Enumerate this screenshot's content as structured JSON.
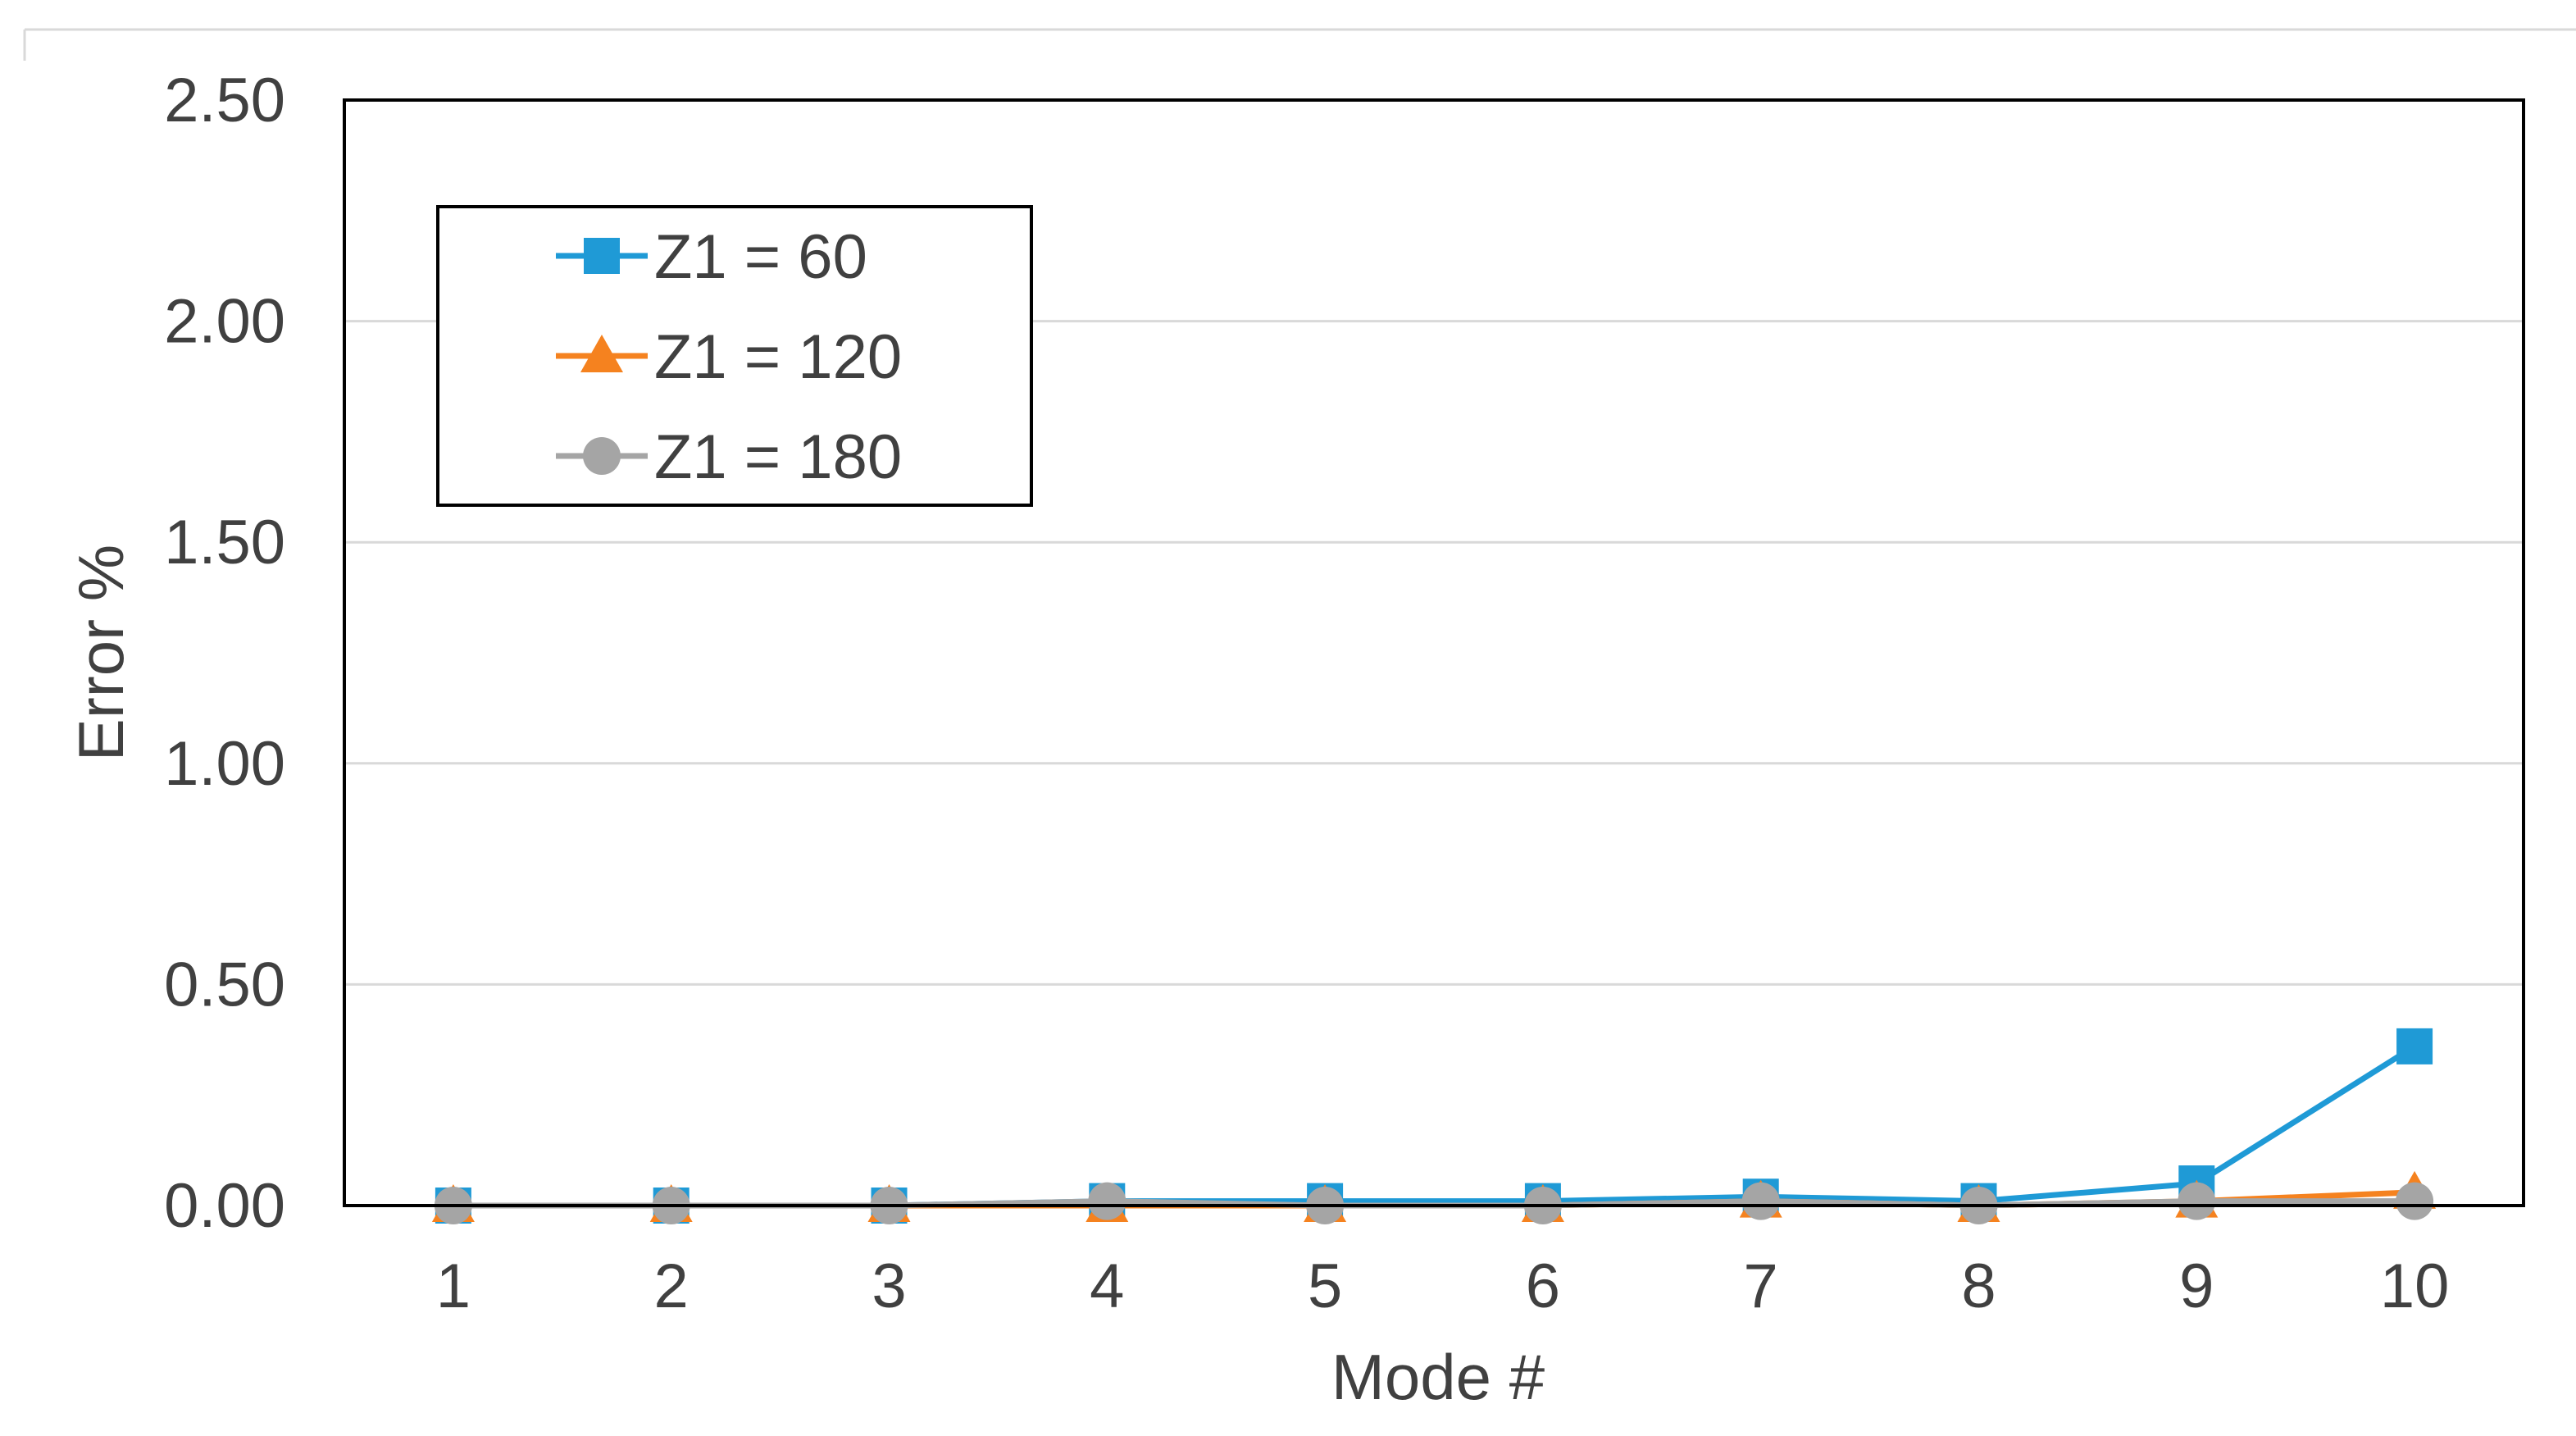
{
  "chart_data": {
    "type": "line",
    "title": "",
    "xlabel": "Mode #",
    "ylabel": "Error %",
    "categories": [
      "1",
      "2",
      "3",
      "4",
      "5",
      "6",
      "7",
      "8",
      "9",
      "10"
    ],
    "y_ticks": [
      "0.00",
      "0.50",
      "1.00",
      "1.50",
      "2.00",
      "2.50"
    ],
    "ylim": [
      0,
      2.5
    ],
    "grid": true,
    "legend_position": "top-left",
    "series": [
      {
        "name": "Z1 = 60",
        "marker": "square",
        "color": "#1f9ad6",
        "values": [
          0.0,
          0.0,
          0.0,
          0.01,
          0.01,
          0.01,
          0.02,
          0.01,
          0.05,
          0.36
        ]
      },
      {
        "name": "Z1 = 120",
        "marker": "triangle",
        "color": "#f5821f",
        "values": [
          0.0,
          0.0,
          0.0,
          0.0,
          0.0,
          0.0,
          0.01,
          0.0,
          0.01,
          0.03
        ]
      },
      {
        "name": "Z1 = 180",
        "marker": "circle",
        "color": "#a5a5a5",
        "values": [
          0.0,
          0.0,
          0.0,
          0.01,
          0.0,
          0.0,
          0.01,
          0.0,
          0.01,
          0.01
        ]
      }
    ]
  }
}
